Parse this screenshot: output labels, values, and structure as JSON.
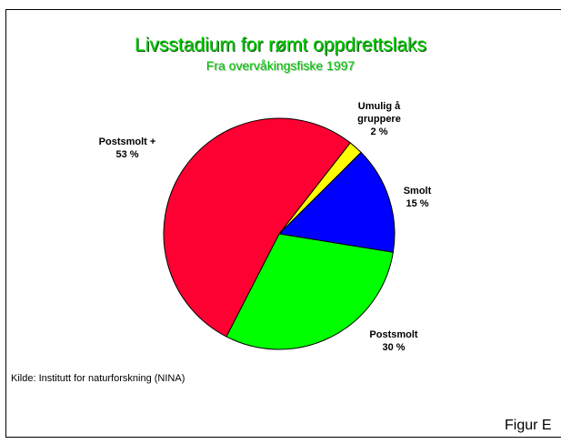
{
  "chart_data": {
    "type": "pie",
    "title": "Livsstadium for rømt oppdrettslaks",
    "subtitle": "Fra overvåkingsfiske 1997",
    "categories": [
      "Umulig å gruppere",
      "Smolt",
      "Postsmolt",
      "Postsmolt +"
    ],
    "values": [
      2,
      15,
      30,
      53
    ],
    "value_labels": [
      "2 %",
      "15 %",
      "30 %",
      "53 %"
    ],
    "colors": [
      "#ffff00",
      "#0000ff",
      "#00ff00",
      "#ff0033"
    ],
    "source": "Kilde: Institutt for naturforskning (NINA)",
    "figure_label": "Figur E"
  }
}
